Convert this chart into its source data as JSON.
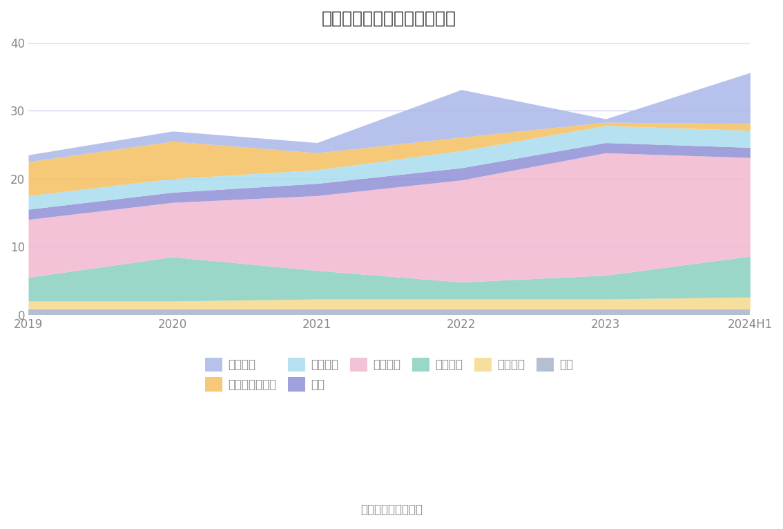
{
  "title": "历年主要资产堆积图（亿元）",
  "years": [
    "2019",
    "2020",
    "2021",
    "2022",
    "2023",
    "2024H1"
  ],
  "series": [
    {
      "name": "其它",
      "color": "#a8b4cc",
      "values": [
        0.8,
        0.8,
        0.8,
        0.8,
        0.8,
        0.8
      ]
    },
    {
      "name": "无形资产",
      "color": "#f5d98b",
      "values": [
        1.2,
        1.2,
        1.5,
        1.5,
        1.5,
        1.8
      ]
    },
    {
      "name": "在建工程",
      "color": "#88d0c0",
      "values": [
        3.5,
        6.5,
        4.2,
        2.5,
        3.5,
        6.0
      ]
    },
    {
      "name": "固定资产",
      "color": "#f2b8d0",
      "values": [
        8.5,
        8.0,
        11.0,
        15.0,
        18.0,
        14.5
      ]
    },
    {
      "name": "存货",
      "color": "#9090d8",
      "values": [
        1.5,
        1.5,
        1.8,
        1.8,
        1.5,
        1.5
      ]
    },
    {
      "name": "应收账款",
      "color": "#aadcee",
      "values": [
        2.0,
        2.0,
        2.0,
        2.5,
        2.5,
        2.5
      ]
    },
    {
      "name": "交易性金融资产",
      "color": "#f5c060",
      "values": [
        5.0,
        5.5,
        2.5,
        2.0,
        0.5,
        1.0
      ]
    },
    {
      "name": "货币资金",
      "color": "#aab8e8",
      "values": [
        1.0,
        1.5,
        1.5,
        7.0,
        0.5,
        7.5
      ]
    }
  ],
  "ylim": [
    0,
    40
  ],
  "yticks": [
    0,
    10,
    20,
    30,
    40
  ],
  "source_text": "数据来源：恒生聚源",
  "background_color": "#ffffff",
  "grid_color": "#d0d8e8",
  "title_fontsize": 18,
  "label_fontsize": 12,
  "legend_order": [
    "货币资金",
    "交易性金融资产",
    "应收账款",
    "存货",
    "固定资产",
    "在建工程",
    "无形资产",
    "其它"
  ]
}
